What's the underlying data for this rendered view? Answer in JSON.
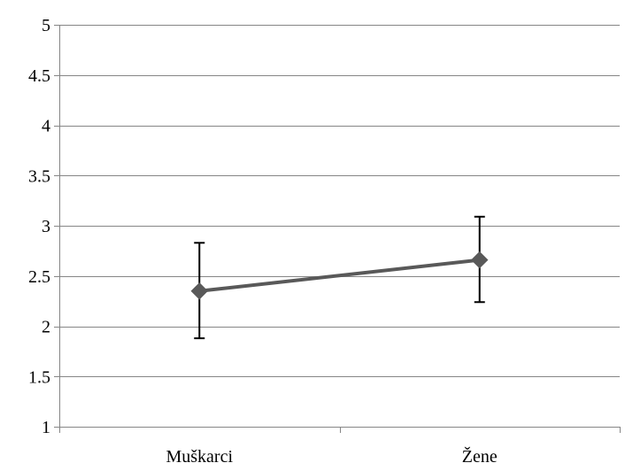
{
  "chart_data": {
    "type": "line",
    "title": "",
    "xlabel": "",
    "ylabel": "",
    "categories": [
      "Muškarci",
      "Žene"
    ],
    "series": [
      {
        "values": [
          2.35,
          2.66
        ],
        "error_lower": [
          1.88,
          2.24
        ],
        "error_upper": [
          2.83,
          3.09
        ],
        "color": "#595959",
        "marker": "diamond"
      }
    ],
    "ylim": [
      1,
      5
    ],
    "y_ticks": [
      1,
      1.5,
      2,
      2.5,
      3,
      3.5,
      4,
      4.5,
      5
    ],
    "y_tick_labels": [
      "1",
      "1.5",
      "2",
      "2.5",
      "3",
      "3.5",
      "4",
      "4.5",
      "5"
    ],
    "grid": true,
    "gridline_color": "#868686",
    "errorbar_color": "#000000",
    "legend": "none"
  }
}
